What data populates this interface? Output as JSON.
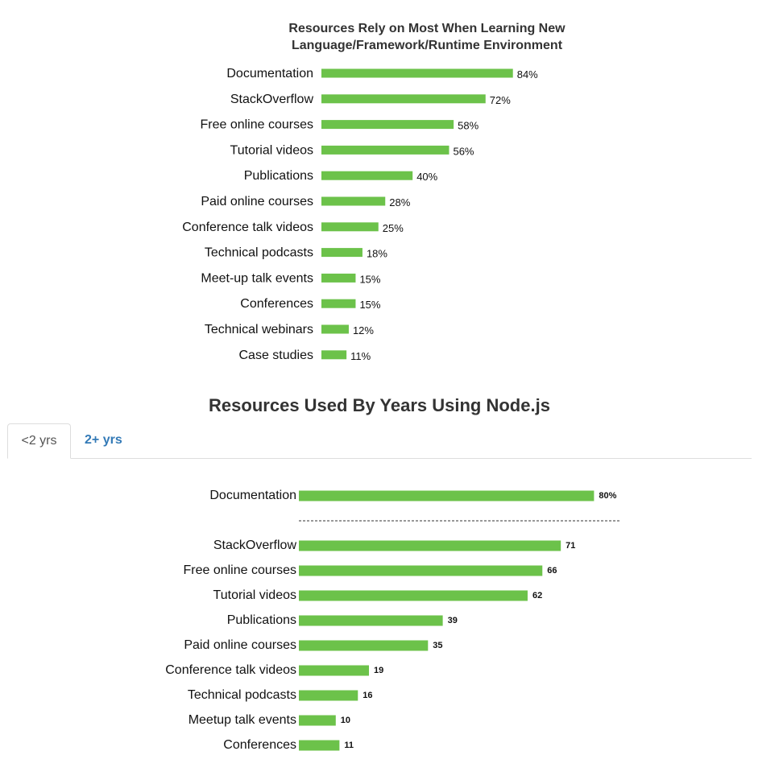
{
  "colors": {
    "bar": "#6cc24a",
    "title": "#333333",
    "link": "#337ab7"
  },
  "chart_data": [
    {
      "type": "bar",
      "orientation": "horizontal",
      "title_lines": [
        "Resources Rely on Most When Learning New",
        "Language/Framework/Runtime Environment"
      ],
      "categories": [
        "Documentation",
        "StackOverflow",
        "Free online courses",
        "Tutorial videos",
        "Publications",
        "Paid online courses",
        "Conference talk videos",
        "Technical podcasts",
        "Meet-up talk events",
        "Conferences",
        "Technical webinars",
        "Case studies"
      ],
      "values": [
        84,
        72,
        58,
        56,
        40,
        28,
        25,
        18,
        15,
        15,
        12,
        11
      ],
      "value_labels": [
        "84%",
        "72%",
        "58%",
        "56%",
        "40%",
        "28%",
        "25%",
        "18%",
        "15%",
        "15%",
        "12%",
        "11%"
      ],
      "unit": "%",
      "xlim": [
        0,
        100
      ]
    },
    {
      "type": "bar",
      "orientation": "horizontal",
      "title": "Resources Used By Years Using Node.js",
      "categories": [
        "Documentation",
        "StackOverflow",
        "Free online courses",
        "Tutorial videos",
        "Publications",
        "Paid online courses",
        "Conference talk videos",
        "Technical podcasts",
        "Meetup talk events",
        "Conferences"
      ],
      "values": [
        80,
        71,
        66,
        62,
        39,
        35,
        19,
        16,
        10,
        11
      ],
      "value_labels": [
        "80%",
        "71",
        "66",
        "62",
        "39",
        "35",
        "19",
        "16",
        "10",
        "11"
      ],
      "divider_after_index": 0,
      "xlim": [
        0,
        100
      ]
    }
  ],
  "tabs": [
    {
      "label": "<2 yrs",
      "active": true
    },
    {
      "label": "2+ yrs",
      "active": false
    }
  ]
}
